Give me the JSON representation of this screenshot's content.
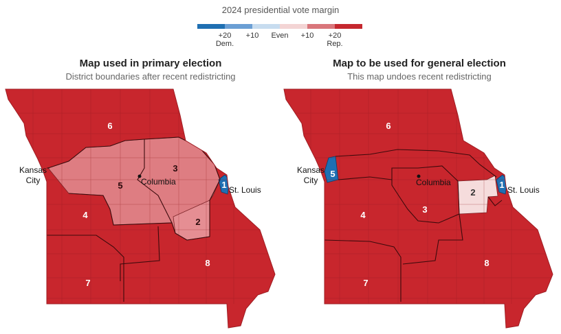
{
  "legend": {
    "title": "2024 presidential vote margin",
    "colors": [
      "#1f6fb2",
      "#6b9fd4",
      "#c7dcef",
      "#f3d4d4",
      "#d9767b",
      "#c5282f"
    ],
    "labels": [
      {
        "main": "+20",
        "sub": "Dem."
      },
      {
        "main": "+10",
        "sub": ""
      },
      {
        "main": "Even",
        "sub": ""
      },
      {
        "main": "+10",
        "sub": ""
      },
      {
        "main": "+20",
        "sub": "Rep."
      }
    ]
  },
  "left_map": {
    "title": "Map used in primary election",
    "subtitle": "District boundaries after recent redistricting",
    "districts": [
      "6",
      "5",
      "3",
      "4",
      "2",
      "1",
      "8",
      "7"
    ],
    "cities": {
      "kansas_city_line1": "Kansas",
      "kansas_city_line2": "City",
      "columbia": "Columbia",
      "st_louis": "St. Louis"
    }
  },
  "right_map": {
    "title": "Map to be used for general election",
    "subtitle": "This map undoes recent redistricting",
    "districts": [
      "6",
      "5",
      "3",
      "4",
      "2",
      "1",
      "8",
      "7"
    ],
    "cities": {
      "kansas_city_line1": "Kansas",
      "kansas_city_line2": "City",
      "columbia": "Columbia",
      "st_louis": "St. Louis"
    }
  },
  "colors": {
    "strong_rep": "#c8262d",
    "lean_rep": "#de7d82",
    "tossup_light": "#f5dcdc",
    "strong_dem": "#1f6fb2"
  }
}
